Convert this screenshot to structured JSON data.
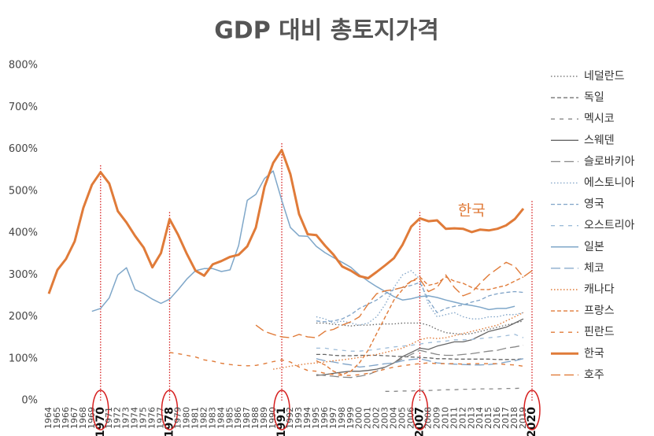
{
  "chart_data": {
    "type": "line",
    "title": "GDP 대비 총토지가격",
    "x": [
      1964,
      1965,
      1966,
      1967,
      1968,
      1969,
      1970,
      1971,
      1972,
      1973,
      1974,
      1975,
      1976,
      1977,
      1978,
      1979,
      1980,
      1981,
      1982,
      1983,
      1984,
      1985,
      1986,
      1987,
      1988,
      1989,
      1990,
      1991,
      1992,
      1993,
      1994,
      1995,
      1996,
      1997,
      1998,
      1999,
      2000,
      2001,
      2002,
      2003,
      2004,
      2005,
      2006,
      2007,
      2008,
      2009,
      2010,
      2011,
      2012,
      2013,
      2014,
      2015,
      2016,
      2017,
      2018,
      2019,
      2020
    ],
    "xlim": [
      1964,
      2020
    ],
    "ylim": [
      0,
      800
    ],
    "yticks": [
      {
        "value": 0,
        "label": "0%"
      },
      {
        "value": 100,
        "label": "100%"
      },
      {
        "value": 200,
        "label": "200%"
      },
      {
        "value": 300,
        "label": "300%"
      },
      {
        "value": 400,
        "label": "400%"
      },
      {
        "value": 500,
        "label": "500%"
      },
      {
        "value": 600,
        "label": "600%"
      },
      {
        "value": 700,
        "label": "700%"
      },
      {
        "value": 800,
        "label": "800%"
      }
    ],
    "highlight": [
      1970,
      1978,
      1991,
      2007,
      2020
    ],
    "highlight_color": "#d62020",
    "annotations": [
      {
        "text": "한국",
        "x": 2013,
        "y": 453,
        "color": "#e07b39"
      }
    ],
    "legend": "right",
    "series": [
      {
        "name": "네덜란드",
        "color": "#666666",
        "dash": "dot",
        "width": 1.3,
        "values": [
          null,
          null,
          null,
          null,
          null,
          null,
          null,
          null,
          null,
          null,
          null,
          null,
          null,
          null,
          null,
          null,
          null,
          null,
          null,
          null,
          null,
          null,
          null,
          null,
          null,
          null,
          null,
          null,
          null,
          null,
          null,
          185,
          185,
          182,
          180,
          178,
          180,
          180,
          182,
          183,
          183,
          185,
          185,
          185,
          180,
          170,
          162,
          160,
          158,
          160,
          165,
          170,
          175,
          180,
          185,
          190,
          null
        ]
      },
      {
        "name": "독일",
        "color": "#666666",
        "dash": "dash",
        "width": 1.3,
        "values": [
          null,
          null,
          null,
          null,
          null,
          null,
          null,
          null,
          null,
          null,
          null,
          null,
          null,
          null,
          null,
          null,
          null,
          null,
          null,
          null,
          null,
          null,
          null,
          null,
          null,
          null,
          null,
          null,
          null,
          null,
          null,
          110,
          110,
          108,
          107,
          107,
          108,
          108,
          108,
          107,
          106,
          105,
          104,
          103,
          102,
          100,
          100,
          99,
          99,
          99,
          99,
          99,
          98,
          98,
          98,
          100,
          null
        ]
      },
      {
        "name": "멕시코",
        "color": "#888888",
        "dash": "wide",
        "width": 1.3,
        "values": [
          null,
          null,
          null,
          null,
          null,
          null,
          null,
          null,
          null,
          null,
          null,
          null,
          null,
          null,
          null,
          null,
          null,
          null,
          null,
          null,
          null,
          null,
          null,
          null,
          null,
          null,
          null,
          null,
          null,
          null,
          null,
          null,
          null,
          null,
          null,
          null,
          null,
          null,
          null,
          22,
          22,
          23,
          23,
          24,
          24,
          25,
          26,
          26,
          27,
          27,
          28,
          28,
          28,
          29,
          29,
          30,
          null
        ]
      },
      {
        "name": "스웨덴",
        "color": "#666666",
        "dash": "solid",
        "width": 1.3,
        "values": [
          null,
          null,
          null,
          null,
          null,
          null,
          null,
          null,
          null,
          null,
          null,
          null,
          null,
          null,
          null,
          null,
          null,
          null,
          null,
          null,
          null,
          null,
          null,
          null,
          null,
          null,
          null,
          null,
          null,
          null,
          null,
          60,
          62,
          65,
          68,
          70,
          70,
          72,
          75,
          80,
          90,
          105,
          115,
          125,
          122,
          130,
          135,
          140,
          140,
          145,
          155,
          165,
          170,
          175,
          185,
          195,
          null
        ]
      },
      {
        "name": "슬로바키아",
        "color": "#888888",
        "dash": "longdash",
        "width": 1.3,
        "values": [
          null,
          null,
          null,
          null,
          null,
          null,
          null,
          null,
          null,
          null,
          null,
          null,
          null,
          null,
          null,
          null,
          null,
          null,
          null,
          null,
          null,
          null,
          null,
          null,
          null,
          null,
          null,
          null,
          null,
          null,
          null,
          62,
          60,
          58,
          56,
          55,
          58,
          62,
          70,
          80,
          90,
          100,
          110,
          120,
          115,
          110,
          108,
          108,
          110,
          112,
          115,
          118,
          120,
          125,
          128,
          132,
          null
        ]
      },
      {
        "name": "에스토니아",
        "color": "#7fa3c7",
        "dash": "dot",
        "width": 1.3,
        "values": [
          null,
          null,
          null,
          null,
          null,
          null,
          null,
          null,
          null,
          null,
          null,
          null,
          null,
          null,
          null,
          null,
          null,
          null,
          null,
          null,
          null,
          null,
          null,
          null,
          null,
          null,
          null,
          null,
          null,
          null,
          null,
          200,
          195,
          185,
          190,
          185,
          180,
          185,
          200,
          230,
          270,
          300,
          310,
          290,
          230,
          200,
          205,
          210,
          200,
          195,
          195,
          200,
          200,
          205,
          205,
          210,
          null
        ]
      },
      {
        "name": "영국",
        "color": "#7fa3c7",
        "dash": "dash",
        "width": 1.3,
        "values": [
          null,
          null,
          null,
          null,
          null,
          null,
          null,
          null,
          null,
          null,
          null,
          null,
          null,
          null,
          null,
          null,
          null,
          null,
          null,
          null,
          null,
          null,
          null,
          null,
          null,
          null,
          null,
          null,
          null,
          null,
          null,
          190,
          188,
          190,
          195,
          205,
          220,
          230,
          240,
          255,
          265,
          270,
          275,
          282,
          240,
          210,
          220,
          225,
          228,
          235,
          240,
          250,
          255,
          258,
          260,
          258,
          null
        ]
      },
      {
        "name": "오스트리아",
        "color": "#9dbcd9",
        "dash": "wide",
        "width": 1.3,
        "values": [
          null,
          null,
          null,
          null,
          null,
          null,
          null,
          null,
          null,
          null,
          null,
          null,
          null,
          null,
          null,
          null,
          null,
          null,
          null,
          null,
          null,
          null,
          null,
          null,
          null,
          null,
          null,
          null,
          null,
          null,
          null,
          125,
          125,
          122,
          120,
          118,
          118,
          120,
          122,
          125,
          128,
          130,
          132,
          135,
          138,
          140,
          142,
          145,
          145,
          146,
          148,
          150,
          152,
          155,
          158,
          150,
          null
        ]
      },
      {
        "name": "일본",
        "color": "#7fa7c9",
        "dash": "solid",
        "width": 1.5,
        "values": [
          null,
          null,
          null,
          null,
          null,
          213,
          220,
          245,
          300,
          317,
          265,
          255,
          242,
          232,
          242,
          265,
          290,
          310,
          315,
          315,
          308,
          312,
          370,
          478,
          492,
          530,
          548,
          478,
          413,
          393,
          392,
          368,
          353,
          341,
          330,
          318,
          300,
          285,
          272,
          260,
          248,
          240,
          243,
          248,
          250,
          246,
          240,
          235,
          230,
          227,
          223,
          217,
          220,
          220,
          225,
          null,
          null
        ]
      },
      {
        "name": "체코",
        "color": "#7fa3c7",
        "dash": "longdash",
        "width": 1.3,
        "values": [
          null,
          null,
          null,
          null,
          null,
          null,
          null,
          null,
          null,
          null,
          null,
          null,
          null,
          null,
          null,
          null,
          null,
          null,
          null,
          null,
          null,
          null,
          null,
          null,
          null,
          null,
          null,
          null,
          null,
          null,
          null,
          100,
          95,
          92,
          88,
          85,
          80,
          82,
          85,
          88,
          90,
          95,
          98,
          100,
          95,
          90,
          88,
          87,
          86,
          85,
          85,
          86,
          88,
          92,
          95,
          100,
          null
        ]
      },
      {
        "name": "캐나다",
        "color": "#e07b39",
        "dash": "dot",
        "width": 1.4,
        "values": [
          null,
          null,
          null,
          null,
          null,
          null,
          null,
          null,
          null,
          null,
          null,
          null,
          null,
          null,
          null,
          null,
          null,
          null,
          null,
          null,
          null,
          null,
          null,
          null,
          null,
          null,
          75,
          78,
          82,
          85,
          88,
          90,
          92,
          95,
          97,
          100,
          103,
          107,
          110,
          115,
          120,
          125,
          135,
          145,
          150,
          148,
          150,
          155,
          160,
          165,
          170,
          175,
          180,
          190,
          200,
          210,
          null
        ]
      },
      {
        "name": "프랑스",
        "color": "#e07b39",
        "dash": "dash",
        "width": 1.4,
        "values": [
          null,
          null,
          null,
          null,
          null,
          null,
          null,
          null,
          null,
          null,
          null,
          null,
          null,
          null,
          null,
          null,
          null,
          null,
          null,
          null,
          null,
          null,
          null,
          null,
          null,
          null,
          null,
          null,
          null,
          null,
          null,
          95,
          85,
          70,
          62,
          70,
          90,
          120,
          160,
          200,
          240,
          265,
          285,
          295,
          275,
          280,
          295,
          285,
          280,
          270,
          265,
          265,
          270,
          275,
          285,
          295,
          null
        ]
      },
      {
        "name": "핀란드",
        "color": "#e07b39",
        "dash": "wide",
        "width": 1.4,
        "values": [
          null,
          null,
          null,
          null,
          null,
          null,
          null,
          null,
          null,
          null,
          null,
          null,
          null,
          null,
          115,
          112,
          108,
          104,
          97,
          94,
          89,
          86,
          84,
          83,
          84,
          88,
          93,
          97,
          92,
          80,
          72,
          70,
          65,
          62,
          60,
          60,
          62,
          65,
          70,
          75,
          80,
          83,
          86,
          88,
          90,
          88,
          88,
          88,
          87,
          88,
          88,
          88,
          88,
          86,
          85,
          82,
          null
        ]
      },
      {
        "name": "한국",
        "color": "#e07b39",
        "dash": "solid",
        "width": 3,
        "values": [
          255,
          312,
          338,
          380,
          460,
          515,
          545,
          518,
          452,
          425,
          393,
          365,
          318,
          352,
          433,
          395,
          350,
          310,
          298,
          325,
          333,
          343,
          348,
          368,
          413,
          510,
          567,
          598,
          540,
          445,
          397,
          395,
          370,
          348,
          320,
          310,
          297,
          292,
          307,
          323,
          340,
          372,
          415,
          435,
          428,
          430,
          410,
          411,
          410,
          402,
          408,
          406,
          410,
          418,
          433,
          458,
          null
        ]
      },
      {
        "name": "호주",
        "color": "#e07b39",
        "dash": "longdash",
        "width": 1.4,
        "values": [
          null,
          null,
          null,
          null,
          null,
          null,
          null,
          null,
          null,
          null,
          null,
          null,
          null,
          null,
          null,
          null,
          null,
          null,
          null,
          null,
          null,
          null,
          null,
          null,
          180,
          165,
          158,
          152,
          150,
          158,
          152,
          150,
          165,
          170,
          180,
          188,
          200,
          230,
          255,
          262,
          265,
          270,
          285,
          290,
          260,
          270,
          300,
          270,
          250,
          258,
          280,
          300,
          315,
          330,
          320,
          295,
          310
        ]
      }
    ]
  }
}
